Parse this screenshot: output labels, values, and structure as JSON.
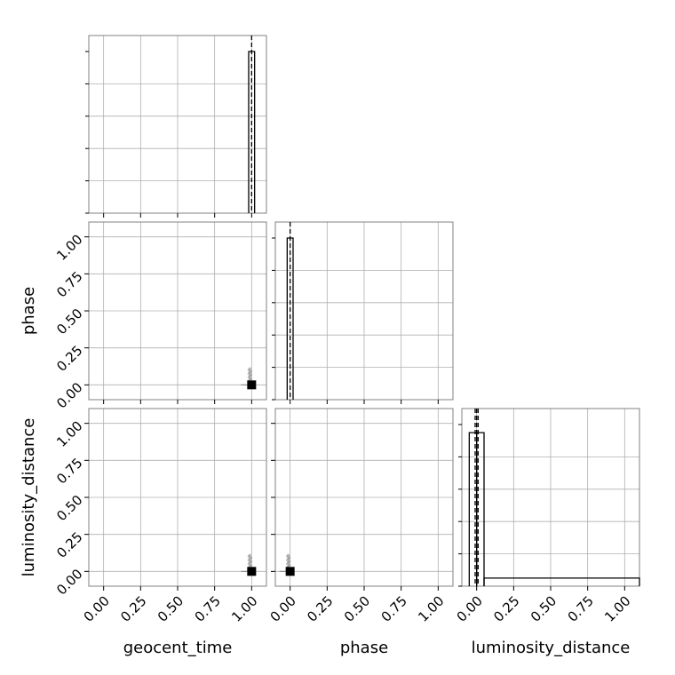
{
  "chart_data": {
    "type": "corner",
    "parameters": [
      "geocent_time",
      "phase",
      "luminosity_distance"
    ],
    "axis_ticks": [
      0.0,
      0.25,
      0.5,
      0.75,
      1.0
    ],
    "tick_labels": [
      "0.00",
      "0.25",
      "0.50",
      "0.75",
      "1.00"
    ],
    "axis_range": [
      -0.1,
      1.1
    ],
    "grid": true,
    "marginals": [
      {
        "parameter": "geocent_time",
        "bins": [
          {
            "lo": 0.98,
            "hi": 1.02,
            "height": 1.0
          }
        ],
        "dashed_lines": [
          1.0
        ]
      },
      {
        "parameter": "phase",
        "bins": [
          {
            "lo": -0.02,
            "hi": 0.02,
            "height": 1.0
          }
        ],
        "dashed_lines": [
          0.0
        ]
      },
      {
        "parameter": "luminosity_distance",
        "bins": [
          {
            "lo": -0.05,
            "hi": 0.0,
            "height": 0.95
          },
          {
            "lo": 0.0,
            "hi": 0.05,
            "height": 0.95
          },
          {
            "lo": 0.05,
            "hi": 1.15,
            "height": 0.05
          }
        ],
        "dashed_lines": [
          -0.01,
          0.0,
          0.01
        ]
      }
    ],
    "joint_panels": [
      {
        "x": "geocent_time",
        "y": "phase",
        "marker": [
          1.0,
          0.0
        ]
      },
      {
        "x": "geocent_time",
        "y": "luminosity_distance",
        "marker": [
          1.0,
          0.0
        ]
      },
      {
        "x": "phase",
        "y": "luminosity_distance",
        "marker": [
          0.0,
          0.0
        ]
      }
    ]
  }
}
